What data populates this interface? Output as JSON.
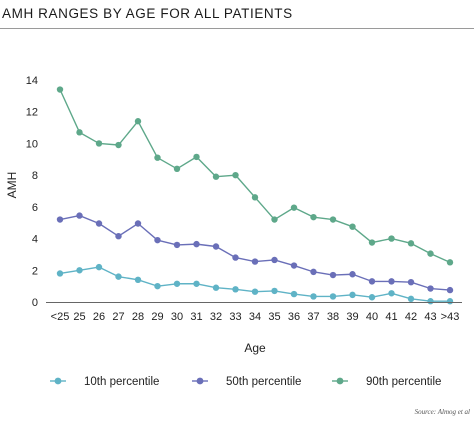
{
  "page": {
    "title": "AMH RANGES BY AGE FOR ALL PATIENTS",
    "source": "Source: Almog et al"
  },
  "colors": {
    "p10": "#5fb3c6",
    "p50": "#6a6fb8",
    "p90": "#5ea88a",
    "axis": "#666666"
  },
  "chart_data": {
    "type": "line",
    "xlabel": "Age",
    "ylabel": "AMH",
    "ylim": [
      0,
      14
    ],
    "yticks": [
      0,
      2,
      4,
      6,
      8,
      10,
      12,
      14
    ],
    "grid": false,
    "legend": "bottom",
    "categories": [
      "<25",
      "25",
      "26",
      "27",
      "28",
      "29",
      "30",
      "31",
      "32",
      "33",
      "34",
      "35",
      "36",
      "37",
      "38",
      "39",
      "40",
      "41",
      "42",
      "43",
      ">43"
    ],
    "series": [
      {
        "name": "10th percentile",
        "color": "#5fb3c6",
        "values": [
          1.8,
          2.0,
          2.2,
          1.6,
          1.4,
          1.0,
          1.15,
          1.15,
          0.9,
          0.8,
          0.65,
          0.7,
          0.5,
          0.35,
          0.35,
          0.45,
          0.3,
          0.55,
          0.2,
          0.05,
          0.05
        ]
      },
      {
        "name": "50th percentile",
        "color": "#6a6fb8",
        "values": [
          5.2,
          5.45,
          4.95,
          4.15,
          4.95,
          3.9,
          3.6,
          3.65,
          3.5,
          2.8,
          2.55,
          2.65,
          2.3,
          1.9,
          1.7,
          1.75,
          1.3,
          1.3,
          1.25,
          0.85,
          0.75
        ]
      },
      {
        "name": "90th percentile",
        "color": "#5ea88a",
        "values": [
          13.4,
          10.7,
          10.0,
          9.9,
          11.4,
          9.1,
          8.4,
          9.15,
          7.9,
          8.0,
          6.6,
          5.2,
          5.95,
          5.35,
          5.2,
          4.75,
          3.75,
          4.0,
          3.7,
          3.05,
          2.5
        ]
      }
    ]
  }
}
